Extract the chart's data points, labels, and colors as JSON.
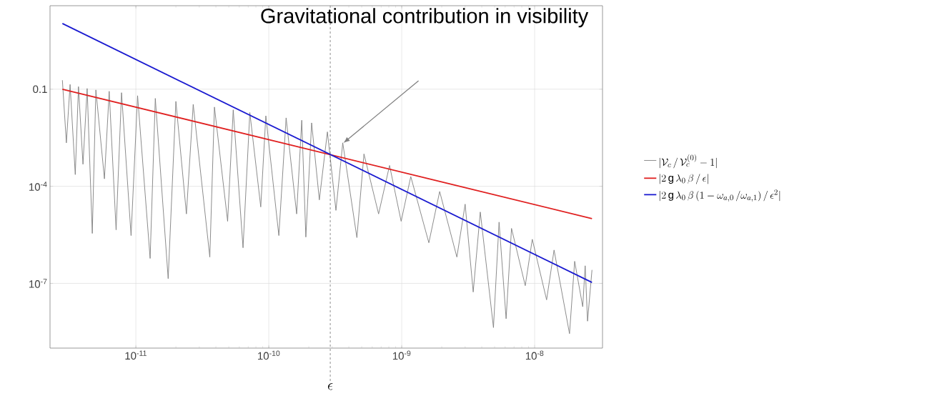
{
  "chart_data": {
    "type": "line",
    "log": "xy",
    "grid": true,
    "legend": "right",
    "xlim": [
      2.26e-12,
      3.24e-08
    ],
    "ylim": [
      1e-09,
      38
    ],
    "xticks": [
      {
        "value": 1e-11,
        "label": "10$^{-11}$"
      },
      {
        "value": 1e-10,
        "label": "10$^{-10}$"
      },
      {
        "value": 1e-09,
        "label": "10$^{-9}$"
      },
      {
        "value": 1e-08,
        "label": "10$^{-8}$"
      }
    ],
    "yticks": [
      {
        "value": 1e-07,
        "label": "10$^{-7}$"
      },
      {
        "value": 0.0001,
        "label": "10$^{-4}$"
      },
      0.1
    ],
    "series": [
      {
        "name": "|\\mathcal{V}_c \\,/\\, \\mathcal{V}_c^{(0)} - 1|",
        "color": "#7f7f7f",
        "x": [
          2.8e-12,
          3e-12,
          3.2e-12,
          3.5e-12,
          3.7e-12,
          4e-12,
          4.3e-12,
          4.7e-12,
          5e-12,
          5.8e-12,
          6.3e-12,
          7.1e-12,
          7.8e-12,
          9.2e-12,
          1.03e-11,
          1.28e-11,
          1.4e-11,
          1.75e-11,
          2e-11,
          2.4e-11,
          2.7e-11,
          3.6e-11,
          3.9e-11,
          4.9e-11,
          5.4e-11,
          6.4e-11,
          7.2e-11,
          8.7e-11,
          9.5e-11,
          1.19e-10,
          1.35e-10,
          1.62e-10,
          1.77e-10,
          1.9e-10,
          2.1e-10,
          2.4e-10,
          2.76e-10,
          3.2e-10,
          3.6e-10,
          4.6e-10,
          5.2e-10,
          6.7e-10,
          8.1e-10,
          9.9e-10,
          1.17e-09,
          1.6e-09,
          1.93e-09,
          2.6e-09,
          3e-09,
          3.45e-09,
          3.9e-09,
          4.9e-09,
          5.4e-09,
          6.1e-09,
          6.7e-09,
          8.5e-09,
          9.6e-09,
          1.23e-08,
          1.4e-08,
          1.83e-08,
          2e-08,
          2.3e-08,
          2.4e-08,
          2.5e-08,
          2.7e-08
        ],
        "values": [
          0.19,
          0.0022,
          0.14,
          0.00023,
          0.12,
          0.00048,
          0.105,
          3.5e-06,
          0.095,
          0.00017,
          0.086,
          4.5e-06,
          0.078,
          3e-06,
          0.063,
          5.9e-07,
          0.052,
          1.4e-07,
          0.042,
          1.4e-05,
          0.034,
          6.5e-07,
          0.028,
          8.3e-06,
          0.023,
          1.26e-06,
          0.019,
          2.3e-05,
          0.015,
          3e-06,
          0.013,
          1.4e-05,
          0.011,
          2.7e-06,
          0.0091,
          3.8e-05,
          0.0048,
          1.8e-05,
          0.0022,
          2.6e-06,
          0.001,
          1.4e-05,
          0.00044,
          8.3e-06,
          0.0002,
          1.8e-06,
          6.9e-05,
          6.5e-07,
          2.8e-05,
          5.4e-08,
          1.6e-05,
          4.3e-09,
          7.8e-06,
          8.1e-09,
          5e-06,
          8.5e-08,
          2.3e-06,
          3.1e-08,
          1.07e-06,
          2.8e-09,
          4.8e-07,
          1.9e-08,
          3.5e-07,
          6.8e-09,
          2.6e-07
        ]
      },
      {
        "name": "|2\\,\\mathrm{g}\\,\\lambda_0\\,\\beta \\,/\\, \\epsilon|",
        "color": "#e02020",
        "x": [
          2.8e-12,
          2.7e-08
        ],
        "values": [
          0.1,
          1e-05
        ]
      },
      {
        "name": "|2\\,\\mathrm{g}\\,\\lambda_0\\,\\beta\\,(1 - \\omega_{a,0} \\,/\\omega_{a,1}) \\,/\\, \\epsilon^2|",
        "color": "#1a1ad0",
        "x": [
          2.8e-12,
          2.7e-08
        ],
        "values": [
          10.7,
          1.07e-07
        ]
      }
    ],
    "ref_lines": [
      {
        "axis": "x",
        "value": 2.9e-10,
        "label": "\\epsilon",
        "color": "#404040",
        "line_style": "dashed"
      }
    ],
    "annotations": [
      "Gravitational contribution in visibility"
    ]
  }
}
